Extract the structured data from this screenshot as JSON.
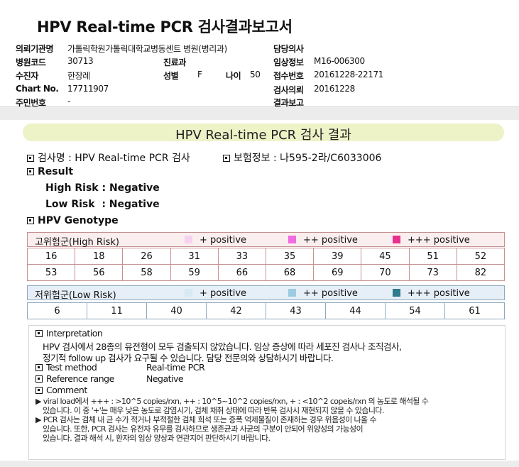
{
  "report": {
    "title": "HPV Real-time PCR 검사결과보고서",
    "fields": {
      "institution_label": "의뢰기관명",
      "institution_value": "가톨릭학원가톨릭대학교병동센트 병원(병리과)",
      "doctor_label": "담당의사",
      "doctor_value": "",
      "hospital_code_label": "병원코드",
      "hospital_code_value": "30713",
      "department_label": "진료과",
      "department_value": "",
      "clinical_info_label": "임상정보",
      "clinical_info_value": "M16-006300",
      "patient_label": "수진자",
      "patient_value": "한장례",
      "sex_label": "성별",
      "sex_value": "F",
      "age_label": "나이",
      "age_value": "50",
      "receipt_no_label": "접수번호",
      "receipt_no_value": "20161228-22171",
      "chart_no_label": "Chart No.",
      "chart_no_value": "17711907",
      "request_date_label": "검사의뢰",
      "request_date_value": "20161228",
      "resident_no_label": "주민번호",
      "resident_no_value": "-",
      "result_report_label": "결과보고",
      "result_report_value": ""
    }
  },
  "result_section": {
    "banner": "HPV Real-time PCR 검사 결과",
    "test_name": "검사명 : HPV Real-time PCR 검사",
    "insurance": "보험정보 : 나595-2라/C6033006",
    "result_heading": "Result",
    "high_risk": "High Risk : Negative",
    "low_risk": "Low Risk  : Negative",
    "genotype_heading": "HPV Genotype"
  },
  "genotype": {
    "high": {
      "title": "고위험군(High Risk)",
      "legend": [
        {
          "label": "+ positive",
          "color": "#f7d2f0"
        },
        {
          "label": "++ positive",
          "color": "#f06ce0"
        },
        {
          "label": "+++ positive",
          "color": "#e8308f"
        }
      ],
      "rows": [
        [
          "16",
          "18",
          "26",
          "31",
          "33",
          "35",
          "39",
          "45",
          "51",
          "52"
        ],
        [
          "53",
          "56",
          "58",
          "59",
          "66",
          "68",
          "69",
          "70",
          "73",
          "82"
        ]
      ]
    },
    "low": {
      "title": "저위험군(Low Risk)",
      "legend": [
        {
          "label": "+ positive",
          "color": "#d8e9f5"
        },
        {
          "label": "++ positive",
          "color": "#9cccdf"
        },
        {
          "label": "+++ positive",
          "color": "#2e7b8e"
        }
      ],
      "rows": [
        [
          "6",
          "11",
          "40",
          "42",
          "43",
          "44",
          "54",
          "61"
        ]
      ]
    }
  },
  "interpretation": {
    "heading": "Interpretation",
    "line1": "HPV 검사에서 28종의 유전형이 모두 검출되지  않았습니다. 임상 증상에 따라 세포진 검사나 조직검사,",
    "line2": "정기적 follow up 검사가 요구될 수 있습니다. 담당 전문의와 상담하시기 바랍니다.",
    "method_label": "Test method",
    "method_value": "Real-time PCR",
    "range_label": "Reference range",
    "range_value": "Negative",
    "comment_label": "Comment",
    "c1a": "▶ viral load에서 +++ : >10^5 copies/rxn, ++ : 10^5~10^2 copies/rxn, + : <10^2 copeis/rxn 의 농도로 해석될 수",
    "c1b": "있습니다. 이 중 '+'는 매우 낮은 농도로 감염시기, 검체 채취 상태에 따라 반복 검사시 재현되지 않을 수 있습니다.",
    "c2a": "▶ PCR 검사는 검체 내 균 수가 적거나 부적절한 검체 희석 또는 증폭 억제물질이 존재하는 경우 위음성이 나올 수",
    "c2b": "있습니다. 또한, PCR 검사는 유전자 유무를 검사하므로 생존균과 사균의 구분이 안되어 위양성의 가능성이",
    "c2c": "있습니다. 결과 해석 시, 환자의 임상 양상과 연관지어 판단하시기 바랍니다."
  }
}
